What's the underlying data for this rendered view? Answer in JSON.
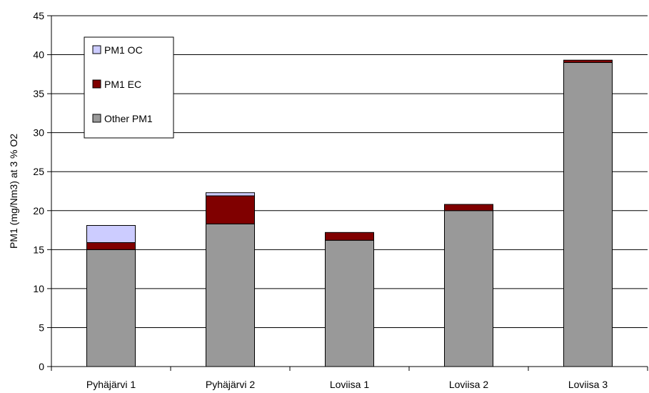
{
  "chart_data": {
    "type": "bar",
    "stacked": true,
    "title": "",
    "xlabel": "",
    "ylabel": "PM1 (mg/Nm3) at 3 % O2",
    "ylim": [
      0,
      45
    ],
    "ytick_step": 5,
    "grid": true,
    "legend_position": "top-left",
    "categories": [
      "Pyhäjärvi 1",
      "Pyhäjärvi 2",
      "Loviisa 1",
      "Loviisa 2",
      "Loviisa 3"
    ],
    "series": [
      {
        "name": "Other PM1",
        "color": "#999999",
        "values": [
          15.0,
          18.3,
          16.2,
          20.0,
          39.0
        ]
      },
      {
        "name": "PM1 EC",
        "color": "#800000",
        "values": [
          0.9,
          3.6,
          1.0,
          0.8,
          0.3
        ]
      },
      {
        "name": "PM1 OC",
        "color": "#ccccff",
        "values": [
          2.2,
          0.4,
          0.0,
          0.0,
          0.0
        ]
      }
    ],
    "legend_order": [
      "PM1 OC",
      "PM1 EC",
      "Other PM1"
    ]
  }
}
